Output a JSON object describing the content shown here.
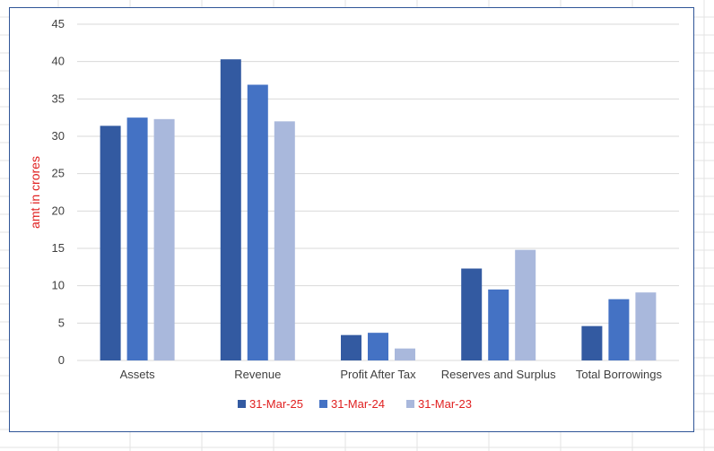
{
  "chart_data": {
    "type": "bar",
    "title": "",
    "xlabel": "",
    "ylabel": "amt in crores",
    "ylim": [
      0,
      45
    ],
    "ytick_step": 5,
    "grid": true,
    "legend_position": "bottom",
    "categories": [
      "Assets",
      "Revenue",
      "Profit After Tax",
      "Reserves and Surplus",
      "Total Borrowings"
    ],
    "series": [
      {
        "name": "31-Mar-25",
        "color": "#335aa1",
        "values": [
          31.4,
          40.3,
          3.4,
          12.3,
          4.6
        ]
      },
      {
        "name": "31-Mar-24",
        "color": "#4472c4",
        "values": [
          32.5,
          36.9,
          3.7,
          9.5,
          8.2
        ]
      },
      {
        "name": "31-Mar-23",
        "color": "#a9b8dc",
        "values": [
          32.3,
          32.0,
          1.6,
          14.8,
          9.1
        ]
      }
    ],
    "colors": {
      "axis_title": "#e02020",
      "legend_text": "#e02020",
      "grid": "#d9d9d9",
      "tick_text": "#404040"
    }
  }
}
